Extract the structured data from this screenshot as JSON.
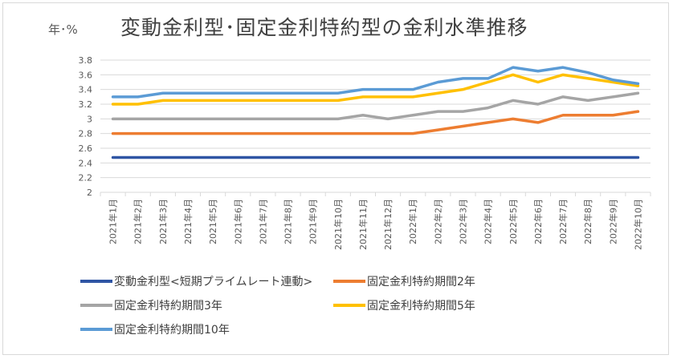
{
  "chart_data": {
    "type": "line",
    "title": "変動金利型･固定金利特約型の金利水準推移",
    "ylabel": "年･%",
    "xlabel": "",
    "ylim": [
      2,
      3.8
    ],
    "yticks": [
      "3.8",
      "3.6",
      "3.4",
      "3.2",
      "3",
      "2.8",
      "2.6",
      "2.4",
      "2.2",
      "2"
    ],
    "grid": true,
    "legend_position": "bottom",
    "categories": [
      "2021年1月",
      "2021年2月",
      "2021年3月",
      "2021年4月",
      "2021年5月",
      "2021年6月",
      "2021年7月",
      "2021年8月",
      "2021年9月",
      "2021年10月",
      "2021年11月",
      "2021年12月",
      "2022年1月",
      "2022年2月",
      "2022年3月",
      "2022年4月",
      "2022年5月",
      "2022年6月",
      "2022年7月",
      "2022年8月",
      "2022年9月",
      "2022年10月"
    ],
    "series": [
      {
        "name": "変動金利型<短期プライムレート連動>",
        "color": "#2f55a4",
        "values": [
          2.475,
          2.475,
          2.475,
          2.475,
          2.475,
          2.475,
          2.475,
          2.475,
          2.475,
          2.475,
          2.475,
          2.475,
          2.475,
          2.475,
          2.475,
          2.475,
          2.475,
          2.475,
          2.475,
          2.475,
          2.475,
          2.475
        ]
      },
      {
        "name": "固定金利特約期間2年",
        "color": "#ed7d31",
        "values": [
          2.8,
          2.8,
          2.8,
          2.8,
          2.8,
          2.8,
          2.8,
          2.8,
          2.8,
          2.8,
          2.8,
          2.8,
          2.8,
          2.85,
          2.9,
          2.95,
          3.0,
          2.95,
          3.05,
          3.05,
          3.05,
          3.1
        ]
      },
      {
        "name": "固定金利特約期間3年",
        "color": "#a5a5a5",
        "values": [
          3.0,
          3.0,
          3.0,
          3.0,
          3.0,
          3.0,
          3.0,
          3.0,
          3.0,
          3.0,
          3.05,
          3.0,
          3.05,
          3.1,
          3.1,
          3.15,
          3.25,
          3.2,
          3.3,
          3.25,
          3.3,
          3.35
        ]
      },
      {
        "name": "固定金利特約期間5年",
        "color": "#ffc000",
        "values": [
          3.2,
          3.2,
          3.25,
          3.25,
          3.25,
          3.25,
          3.25,
          3.25,
          3.25,
          3.25,
          3.3,
          3.3,
          3.3,
          3.35,
          3.4,
          3.5,
          3.6,
          3.5,
          3.6,
          3.55,
          3.5,
          3.45
        ]
      },
      {
        "name": "固定金利特約期間10年",
        "color": "#5b9bd5",
        "values": [
          3.3,
          3.3,
          3.35,
          3.35,
          3.35,
          3.35,
          3.35,
          3.35,
          3.35,
          3.35,
          3.4,
          3.4,
          3.4,
          3.5,
          3.55,
          3.55,
          3.7,
          3.65,
          3.7,
          3.63,
          3.53,
          3.48
        ]
      }
    ]
  }
}
